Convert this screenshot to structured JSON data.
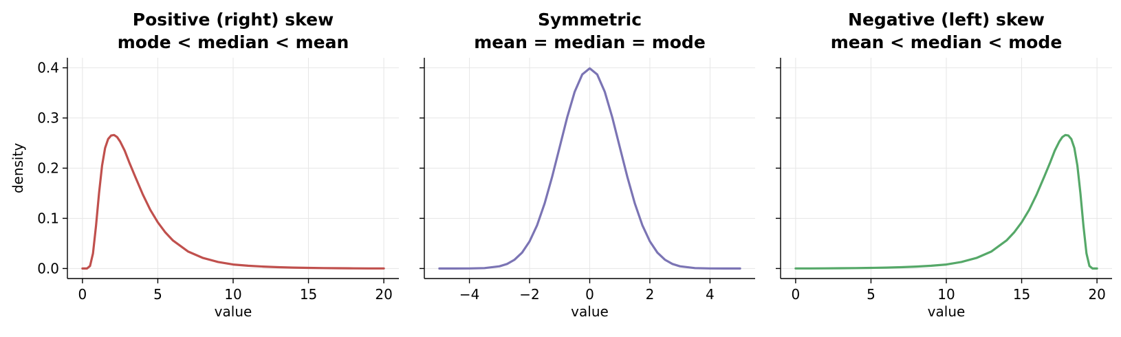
{
  "chart_data": [
    {
      "type": "line",
      "title": [
        "Positive (right) skew",
        "mode < median < mean"
      ],
      "xlabel": "value",
      "ylabel": "density",
      "xlim": [
        -1,
        21
      ],
      "ylim": [
        -0.02,
        0.42
      ],
      "xticks": [
        0,
        5,
        10,
        15,
        20
      ],
      "xtick_labels": [
        "0",
        "5",
        "10",
        "15",
        "20"
      ],
      "yticks": [
        0.0,
        0.1,
        0.2,
        0.3,
        0.4
      ],
      "ytick_labels": [
        "0.0",
        "0.1",
        "0.2",
        "0.3",
        "0.4"
      ],
      "show_ytick_labels": true,
      "grid": true,
      "color": "#c0504d",
      "series": [
        {
          "x": [
            0,
            0.3,
            0.5,
            0.7,
            0.9,
            1.1,
            1.3,
            1.5,
            1.7,
            1.9,
            2.1,
            2.3,
            2.5,
            2.8,
            3.1,
            3.5,
            4.0,
            4.5,
            5.0,
            5.5,
            6.0,
            7.0,
            8.0,
            9.0,
            10.0,
            11.0,
            12.0,
            13.0,
            14.0,
            15.0,
            16.0,
            17.0,
            18.0,
            19.0,
            20.0
          ],
          "y": [
            0.0,
            0.0,
            0.005,
            0.03,
            0.085,
            0.15,
            0.205,
            0.24,
            0.258,
            0.265,
            0.266,
            0.262,
            0.253,
            0.235,
            0.212,
            0.183,
            0.148,
            0.117,
            0.092,
            0.072,
            0.056,
            0.034,
            0.021,
            0.013,
            0.008,
            0.0055,
            0.0038,
            0.0026,
            0.0018,
            0.0012,
            0.0008,
            0.0005,
            0.0003,
            0.0002,
            0.0001
          ]
        }
      ]
    },
    {
      "type": "line",
      "title": [
        "Symmetric",
        "mean = median = mode"
      ],
      "xlabel": "value",
      "ylabel": "",
      "xlim": [
        -5.5,
        5.5
      ],
      "ylim": [
        -0.02,
        0.42
      ],
      "xticks": [
        -4,
        -2,
        0,
        2,
        4
      ],
      "xtick_labels": [
        "−4",
        "−2",
        "0",
        "2",
        "4"
      ],
      "yticks": [
        0.0,
        0.1,
        0.2,
        0.3,
        0.4
      ],
      "show_ytick_labels": false,
      "grid": true,
      "color": "#7b74b4",
      "series": [
        {
          "x": [
            -5.0,
            -4.5,
            -4.0,
            -3.5,
            -3.0,
            -2.75,
            -2.5,
            -2.25,
            -2.0,
            -1.75,
            -1.5,
            -1.25,
            -1.0,
            -0.75,
            -0.5,
            -0.25,
            0.0,
            0.25,
            0.5,
            0.75,
            1.0,
            1.25,
            1.5,
            1.75,
            2.0,
            2.25,
            2.5,
            2.75,
            3.0,
            3.5,
            4.0,
            4.5,
            5.0
          ],
          "y": [
            0.0,
            0.0,
            0.0001,
            0.0009,
            0.0044,
            0.0091,
            0.0175,
            0.0317,
            0.054,
            0.0863,
            0.1295,
            0.1826,
            0.242,
            0.3011,
            0.3521,
            0.3867,
            0.3989,
            0.3867,
            0.3521,
            0.3011,
            0.242,
            0.1826,
            0.1295,
            0.0863,
            0.054,
            0.0317,
            0.0175,
            0.0091,
            0.0044,
            0.0009,
            0.0001,
            0.0,
            0.0
          ]
        }
      ]
    },
    {
      "type": "line",
      "title": [
        "Negative (left) skew",
        "mean < median < mode"
      ],
      "xlabel": "value",
      "ylabel": "",
      "xlim": [
        -1,
        21
      ],
      "ylim": [
        -0.02,
        0.42
      ],
      "xticks": [
        0,
        5,
        10,
        15,
        20
      ],
      "xtick_labels": [
        "0",
        "5",
        "10",
        "15",
        "20"
      ],
      "yticks": [
        0.0,
        0.1,
        0.2,
        0.3,
        0.4
      ],
      "show_ytick_labels": false,
      "grid": true,
      "color": "#55a868",
      "series": [
        {
          "x": [
            0.0,
            1.0,
            2.0,
            3.0,
            4.0,
            5.0,
            6.0,
            7.0,
            8.0,
            9.0,
            10.0,
            11.0,
            12.0,
            13.0,
            14.0,
            14.5,
            15.0,
            15.5,
            16.0,
            16.5,
            16.9,
            17.2,
            17.5,
            17.7,
            17.9,
            18.1,
            18.3,
            18.5,
            18.7,
            18.9,
            19.1,
            19.3,
            19.5,
            19.7,
            20.0
          ],
          "y": [
            0.0001,
            0.0002,
            0.0003,
            0.0005,
            0.0008,
            0.0012,
            0.0018,
            0.0026,
            0.0038,
            0.0055,
            0.008,
            0.013,
            0.021,
            0.034,
            0.056,
            0.072,
            0.092,
            0.117,
            0.148,
            0.183,
            0.212,
            0.235,
            0.253,
            0.262,
            0.266,
            0.265,
            0.258,
            0.24,
            0.205,
            0.15,
            0.085,
            0.03,
            0.005,
            0.0,
            0.0
          ]
        }
      ]
    }
  ]
}
